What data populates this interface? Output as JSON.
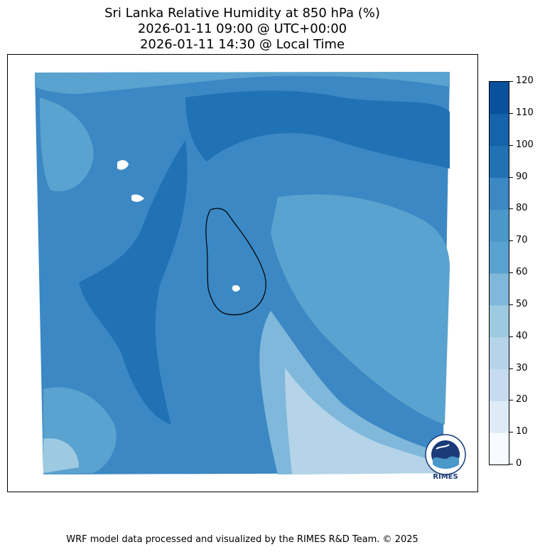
{
  "title": {
    "line1": "Sri Lanka Relative Humidity at 850 hPa (%)",
    "line2": "2026-01-11 09:00 @ UTC+00:00",
    "line3": "2026-01-11 14:30 @ Local Time"
  },
  "colorbar": {
    "levels": [
      "0",
      "10",
      "20",
      "30",
      "40",
      "50",
      "60",
      "70",
      "80",
      "90",
      "100",
      "110",
      "120"
    ],
    "colors": [
      "#f7fbff",
      "#deebf7",
      "#c6dbef",
      "#b5d4e9",
      "#9ecae1",
      "#7fb8da",
      "#5aa2cf",
      "#4a98c9",
      "#3b88c4",
      "#2171b5",
      "#1563aa",
      "#08519c",
      "#08306b"
    ]
  },
  "logo": {
    "text": "RIMES",
    "icon": "rimes-globe-logo"
  },
  "footer": "WRF model data processed and visualized by the RIMES R&D Team. © 2025"
}
